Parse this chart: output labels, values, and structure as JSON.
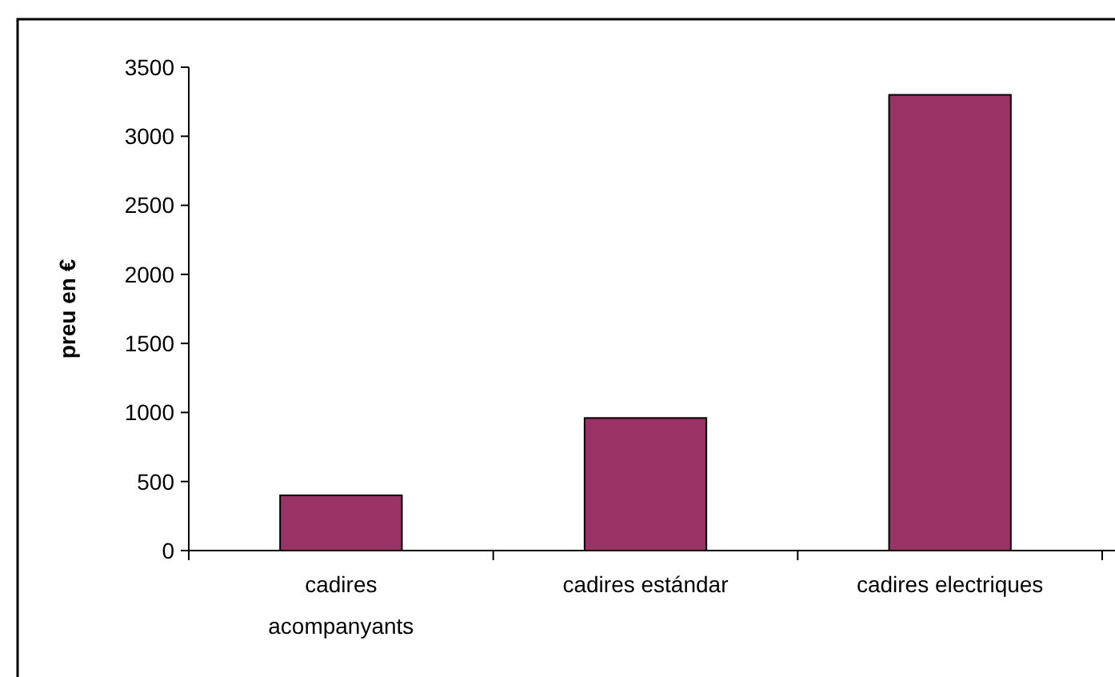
{
  "chart_data": {
    "type": "bar",
    "ylabel": "preu en €",
    "categories": [
      "cadires acompanyants",
      "cadires estándar",
      "cadires electriques"
    ],
    "values": [
      400,
      960,
      3300
    ],
    "color": "#993366",
    "ylim": [
      0,
      3500
    ],
    "yticks": [
      0,
      500,
      1000,
      1500,
      2000,
      2500,
      3000,
      3500
    ],
    "grid": false
  }
}
